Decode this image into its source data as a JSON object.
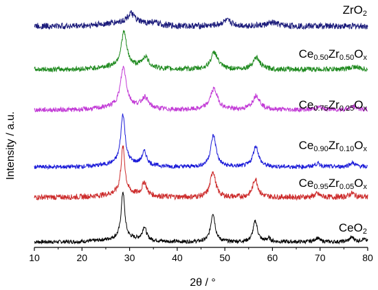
{
  "chart_data": {
    "type": "line",
    "title": "",
    "xlabel": "2θ / °",
    "ylabel": "Intensity / a.u.",
    "xlim": [
      10,
      80
    ],
    "xticks": [
      "10",
      "20",
      "30",
      "40",
      "50",
      "60",
      "70",
      "80"
    ],
    "grid": false,
    "legend": "none",
    "series": [
      {
        "label_parts": [
          [
            "CeO",
            ""
          ],
          [
            "2",
            "sub"
          ]
        ],
        "color": "#000000",
        "noise": 0.9,
        "baseline": 0,
        "peaks": [
          [
            28.6,
            36,
            0.45
          ],
          [
            33.1,
            10,
            0.5
          ],
          [
            47.5,
            22,
            0.55
          ],
          [
            56.4,
            16,
            0.55
          ],
          [
            59.2,
            2.5,
            0.5
          ],
          [
            69.4,
            3,
            0.6
          ],
          [
            76.7,
            3.5,
            0.6
          ],
          [
            79.1,
            2,
            0.6
          ]
        ]
      },
      {
        "label_parts": [
          [
            "Ce",
            ""
          ],
          [
            "0.95",
            "sub"
          ],
          [
            "Zr",
            ""
          ],
          [
            "0.05",
            "sub"
          ],
          [
            "O",
            ""
          ],
          [
            "x",
            "sub"
          ]
        ],
        "color": "#cc2a2a",
        "noise": 1.3,
        "baseline": 0,
        "peaks": [
          [
            28.6,
            36,
            0.5
          ],
          [
            33.1,
            10,
            0.55
          ],
          [
            47.5,
            20,
            0.65
          ],
          [
            56.4,
            14,
            0.65
          ],
          [
            69.4,
            2.5,
            0.7
          ],
          [
            76.7,
            3,
            0.7
          ]
        ]
      },
      {
        "label_parts": [
          [
            "Ce",
            ""
          ],
          [
            "0.90",
            "sub"
          ],
          [
            "Zr",
            ""
          ],
          [
            "0.10",
            "sub"
          ],
          [
            "O",
            ""
          ],
          [
            "x",
            "sub"
          ]
        ],
        "color": "#1a1ad8",
        "noise": 1.0,
        "baseline": 0,
        "peaks": [
          [
            28.6,
            38,
            0.55
          ],
          [
            33.1,
            10,
            0.6
          ],
          [
            47.6,
            24,
            0.7
          ],
          [
            56.5,
            16,
            0.7
          ],
          [
            69.5,
            2.5,
            0.8
          ],
          [
            76.8,
            3,
            0.8
          ]
        ]
      },
      {
        "label_parts": [
          [
            "Ce",
            ""
          ],
          [
            "0.75",
            "sub"
          ],
          [
            "Zr",
            ""
          ],
          [
            "0.25",
            "sub"
          ],
          [
            "O",
            ""
          ],
          [
            "x",
            "sub"
          ]
        ],
        "color": "#c23ad6",
        "noise": 1.1,
        "baseline": 0,
        "peaks": [
          [
            28.7,
            30,
            0.75
          ],
          [
            33.2,
            8,
            0.8
          ],
          [
            47.7,
            16,
            0.95
          ],
          [
            56.6,
            11,
            0.95
          ],
          [
            69.8,
            2,
            1.0
          ],
          [
            77.0,
            2.5,
            1.0
          ]
        ]
      },
      {
        "label_parts": [
          [
            "Ce",
            ""
          ],
          [
            "0.50",
            "sub"
          ],
          [
            "Zr",
            ""
          ],
          [
            "0.50",
            "sub"
          ],
          [
            "O",
            ""
          ],
          [
            "x",
            "sub"
          ]
        ],
        "color": "#1f8a1f",
        "noise": 1.2,
        "baseline": 0,
        "peaks": [
          [
            28.8,
            26,
            0.7
          ],
          [
            33.3,
            8,
            0.8
          ],
          [
            47.8,
            13,
            0.9
          ],
          [
            56.6,
            9,
            0.9
          ],
          [
            77.2,
            2,
            1.0
          ]
        ]
      },
      {
        "label_parts": [
          [
            "ZrO",
            ""
          ],
          [
            "2",
            "sub"
          ]
        ],
        "color": "#1a1a7a",
        "noise": 1.5,
        "baseline": 0,
        "peaks": [
          [
            30.3,
            7,
            1.0
          ],
          [
            35.0,
            2,
            1.2
          ],
          [
            50.4,
            4,
            1.3
          ],
          [
            60.0,
            2.5,
            1.3
          ]
        ]
      }
    ]
  }
}
